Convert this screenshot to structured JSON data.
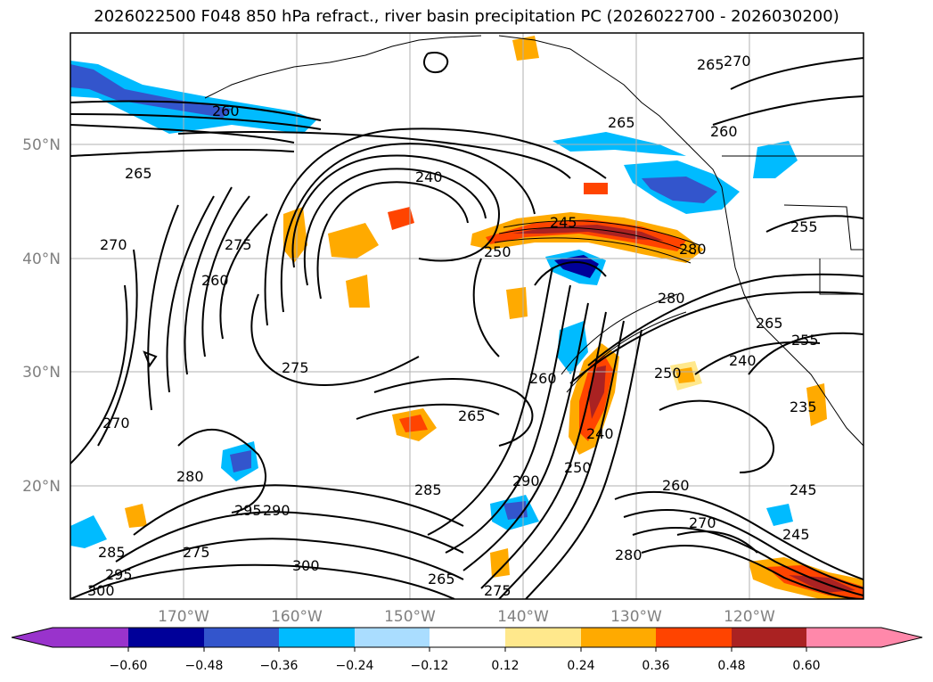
{
  "title": "2026022500 F048 850 hPa refract., river basin precipitation PC (2026022700 - 2026030200)",
  "latitude_labels": [
    "50°N",
    "40°N",
    "30°N",
    "20°N"
  ],
  "longitude_labels": [
    "170°W",
    "160°W",
    "150°W",
    "140°W",
    "130°W",
    "120°W"
  ],
  "colorbar": {
    "tick_labels": [
      "−0.60",
      "−0.48",
      "−0.36",
      "−0.24",
      "−0.12",
      "0.12",
      "0.24",
      "0.36",
      "0.48",
      "0.60"
    ],
    "colors": [
      "#9933cc",
      "#000099",
      "#3355cc",
      "#00bbff",
      "#aaddff",
      "#ffffff",
      "#ffe88c",
      "#ffaa00",
      "#ff4400",
      "#aa2222",
      "#ff88aa"
    ]
  },
  "contour_labels": [
    "260",
    "265",
    "270",
    "265",
    "260",
    "255",
    "240",
    "245",
    "250",
    "280",
    "275",
    "260",
    "265",
    "270",
    "280",
    "275",
    "285",
    "290",
    "295",
    "300",
    "290",
    "260",
    "270",
    "280",
    "285",
    "295",
    "300",
    "250",
    "240",
    "235",
    "255",
    "245",
    "275",
    "265",
    "250",
    "240",
    "260",
    "280",
    "265",
    "270",
    "245",
    "265",
    "275"
  ]
}
